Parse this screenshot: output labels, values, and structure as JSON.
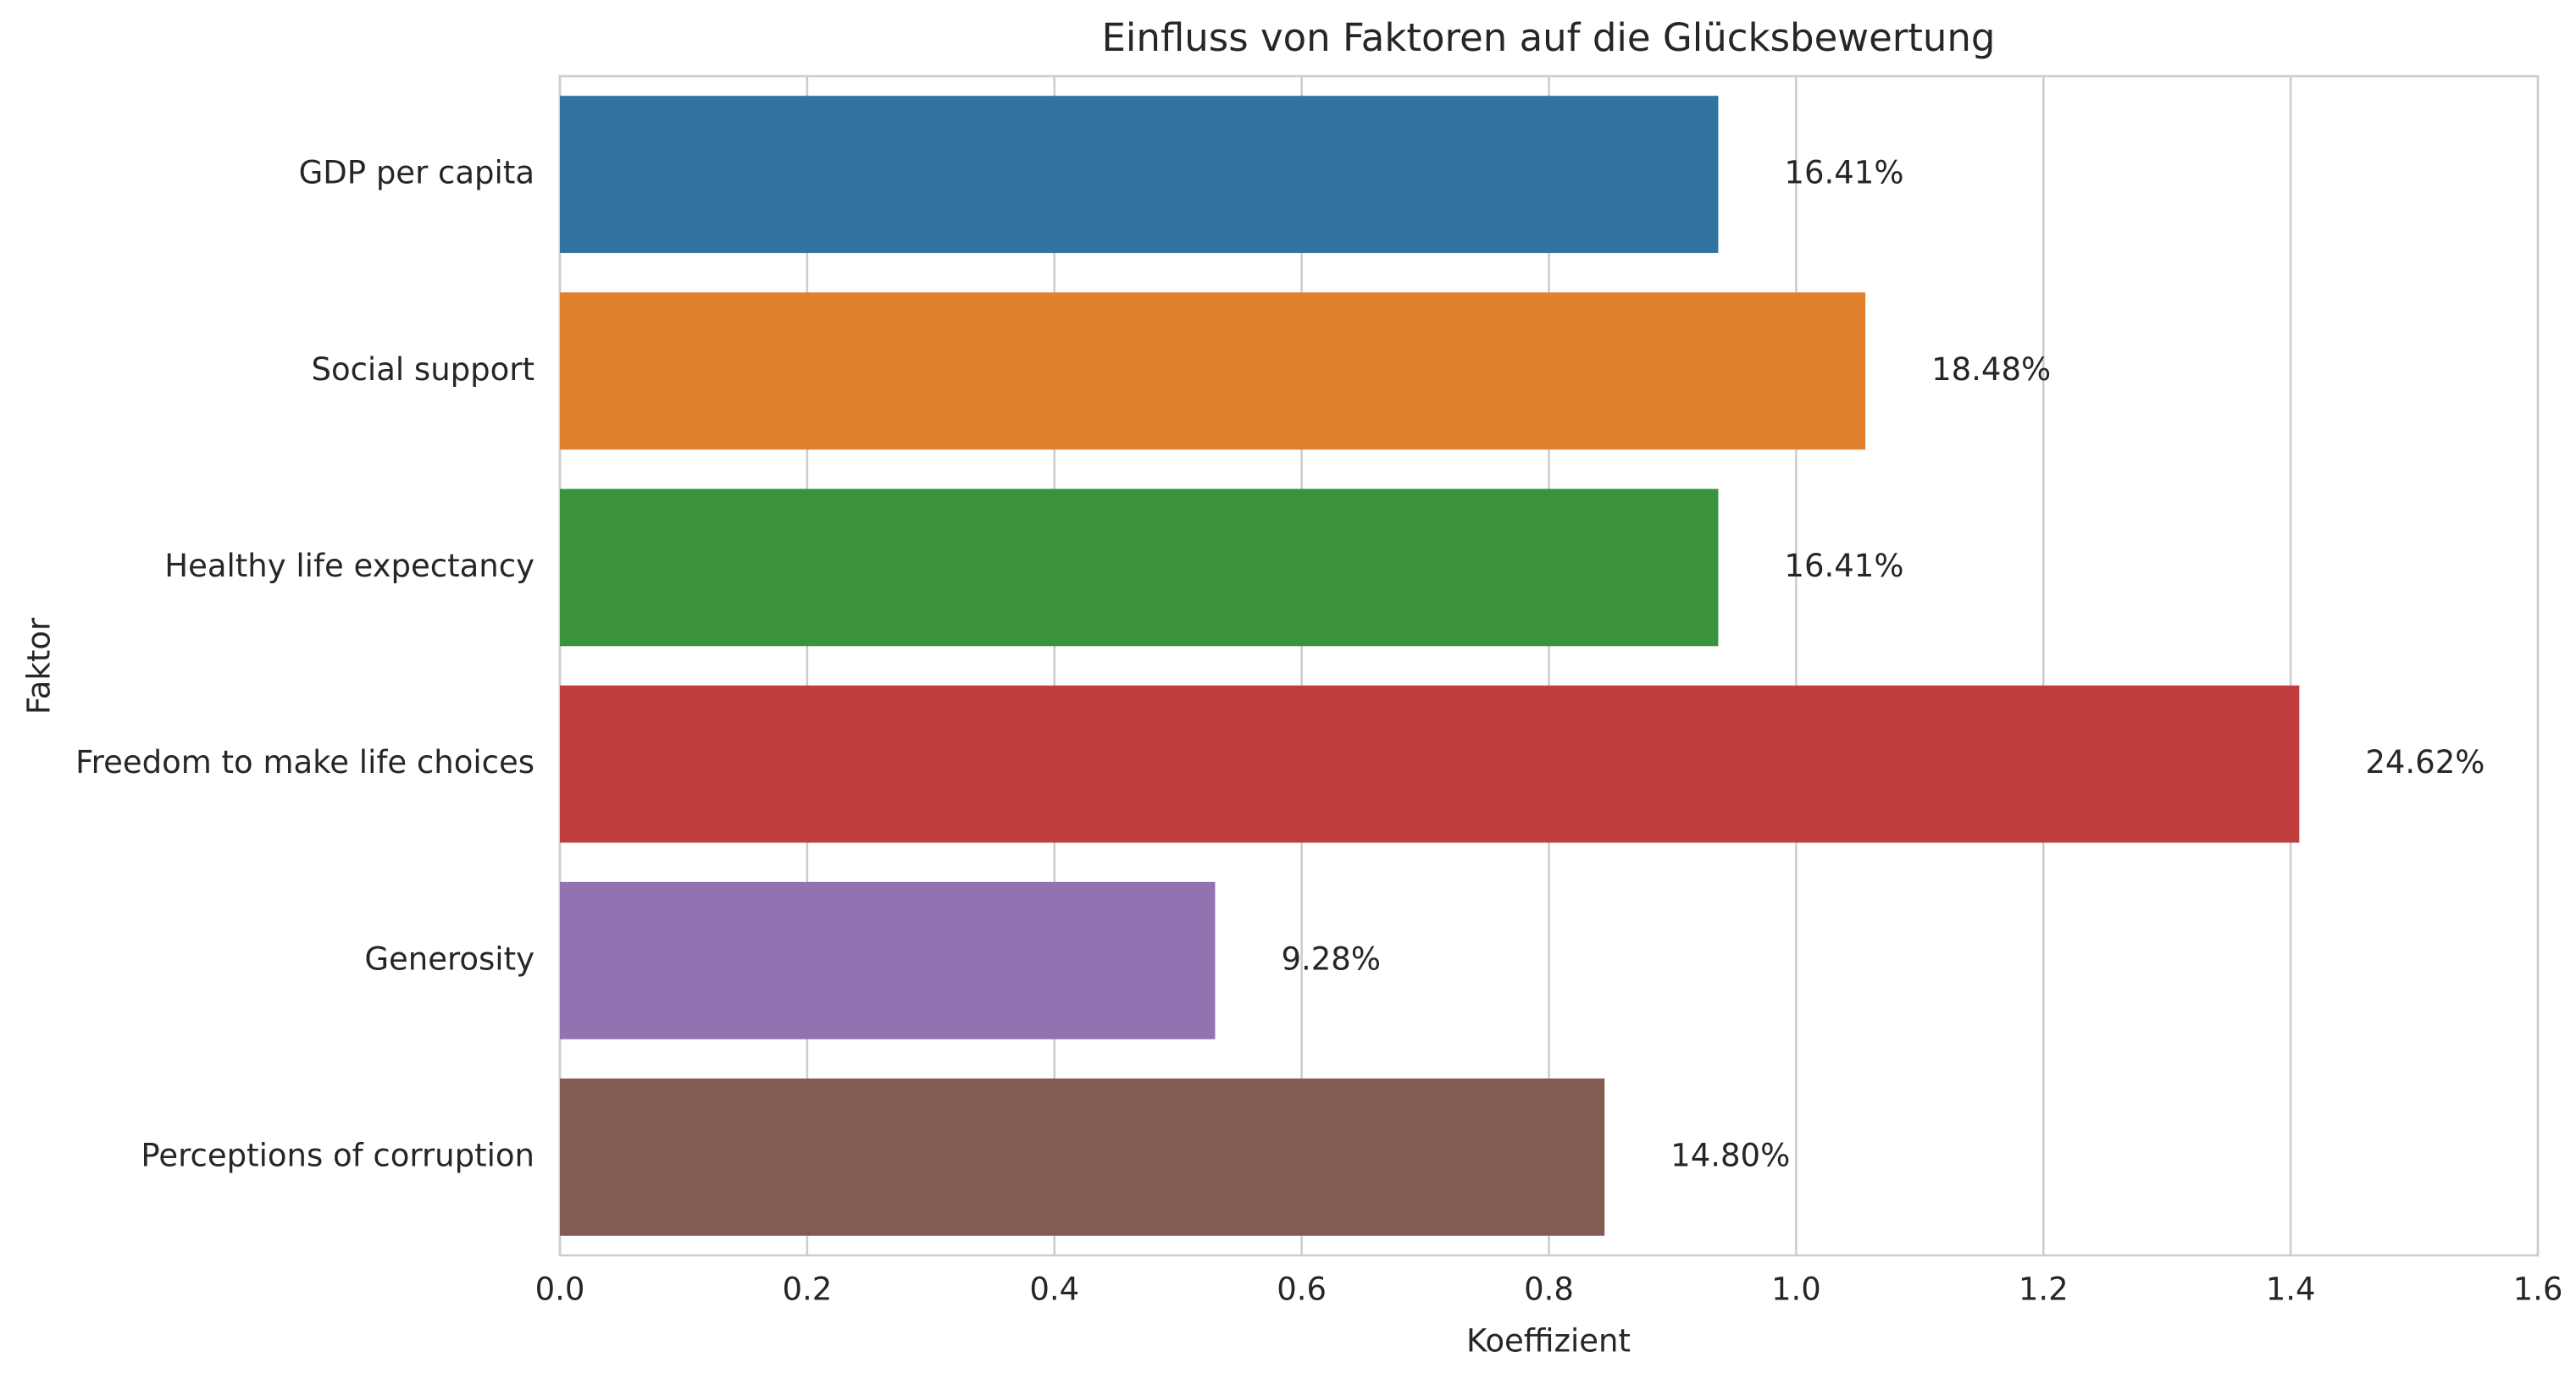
{
  "chart_data": {
    "type": "barh",
    "title": "Einfluss von Faktoren auf die Glücksbewertung",
    "xlabel": "Koeffizient",
    "ylabel": "Faktor",
    "categories": [
      "GDP per capita",
      "Social support",
      "Healthy life expectancy",
      "Freedom to make life choices",
      "Generosity",
      "Perceptions of corruption"
    ],
    "values": [
      0.937,
      1.056,
      0.937,
      1.407,
      0.53,
      0.845
    ],
    "bar_labels": [
      "16.41%",
      "18.48%",
      "16.41%",
      "24.62%",
      "9.28%",
      "14.80%"
    ],
    "colors": [
      "#3274a1",
      "#e1812c",
      "#3a923a",
      "#c03d3e",
      "#9372b2",
      "#845b53"
    ],
    "xlim": [
      0,
      1.6
    ],
    "xticks": [
      {
        "value": 0,
        "label": "0.0"
      },
      0.2,
      0.4,
      0.6,
      0.8,
      {
        "value": 1,
        "label": "1.0"
      },
      1.2,
      1.4,
      1.6
    ],
    "grid": true
  }
}
